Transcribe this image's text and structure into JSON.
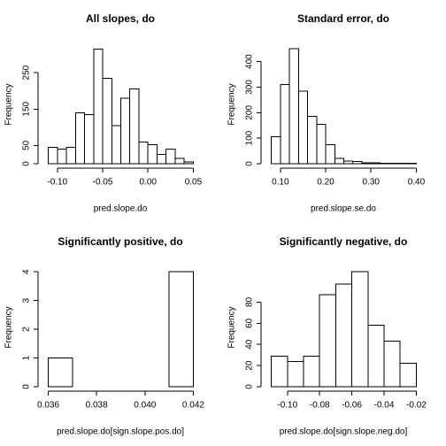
{
  "chart_data": [
    {
      "type": "histogram",
      "title": "All slopes, do",
      "x_label": "pred.slope.do",
      "y_label": "Frequency",
      "bins": [
        -0.11,
        -0.1,
        -0.09,
        -0.08,
        -0.07,
        -0.06,
        -0.05,
        -0.04,
        -0.03,
        -0.02,
        -0.01,
        0.0,
        0.01,
        0.02,
        0.03,
        0.04,
        0.05
      ],
      "values": [
        45,
        40,
        45,
        140,
        135,
        315,
        235,
        105,
        180,
        205,
        60,
        52,
        25,
        40,
        15,
        5
      ],
      "xlim": [
        -0.1164,
        0.0564
      ],
      "ylim": [
        0,
        328
      ],
      "xticks": [
        {
          "value": -0.1,
          "label": "-0.10"
        },
        -0.05,
        {
          "value": 0,
          "label": "0.00"
        },
        0.05
      ],
      "yticks": [
        0,
        50,
        150,
        250
      ],
      "color": "#ffffff"
    },
    {
      "type": "histogram",
      "title": "Standard error, do",
      "x_label": "pred.slope.se.do",
      "y_label": "Frequency",
      "bins": [
        0.08,
        0.1,
        0.12,
        0.14,
        0.16,
        0.18,
        0.2,
        0.22,
        0.24,
        0.26,
        0.28,
        0.3,
        0.32,
        0.34,
        0.36,
        0.38,
        0.4
      ],
      "values": [
        105,
        310,
        450,
        285,
        185,
        155,
        75,
        20,
        10,
        8,
        3,
        3,
        2,
        1,
        1,
        1
      ],
      "xlim": [
        0.0672,
        0.4128
      ],
      "ylim": [
        0,
        468
      ],
      "xticks": [
        {
          "value": 0.1,
          "label": "0.10"
        },
        {
          "value": 0.2,
          "label": "0.20"
        },
        {
          "value": 0.3,
          "label": "0.30"
        },
        {
          "value": 0.4,
          "label": "0.40"
        }
      ],
      "yticks": [
        0,
        100,
        200,
        300,
        400
      ],
      "color": "#ffffff"
    },
    {
      "type": "histogram",
      "title": "Significantly positive, do",
      "x_label": "pred.slope.do[sign.slope.pos.do]",
      "y_label": "Frequency",
      "bins": [
        0.036,
        0.037,
        0.038,
        0.039,
        0.04,
        0.041,
        0.042
      ],
      "values": [
        1,
        0,
        0,
        0,
        0,
        4
      ],
      "xlim": [
        0.03576,
        0.04224
      ],
      "ylim": [
        0,
        4.16
      ],
      "xticks": [
        0.036,
        0.038,
        {
          "value": 0.04,
          "label": "0.040"
        },
        0.042
      ],
      "yticks": [
        0,
        1,
        2,
        3,
        4
      ],
      "color": "#ffffff"
    },
    {
      "type": "histogram",
      "title": "Significantly negative, do",
      "x_label": "pred.slope.do[sign.slope.neg.do]",
      "y_label": "Frequency",
      "bins": [
        -0.11,
        -0.1,
        -0.09,
        -0.08,
        -0.07,
        -0.06,
        -0.05,
        -0.04,
        -0.03,
        -0.02
      ],
      "values": [
        29,
        24,
        29,
        87,
        97,
        109,
        58,
        43,
        22
      ],
      "xlim": [
        -0.1136,
        -0.0164
      ],
      "ylim": [
        0,
        113
      ],
      "xticks": [
        {
          "value": -0.1,
          "label": "-0.10"
        },
        -0.08,
        -0.06,
        -0.04,
        -0.02
      ],
      "yticks": [
        0,
        20,
        40,
        60,
        80
      ],
      "color": "#ffffff"
    }
  ]
}
